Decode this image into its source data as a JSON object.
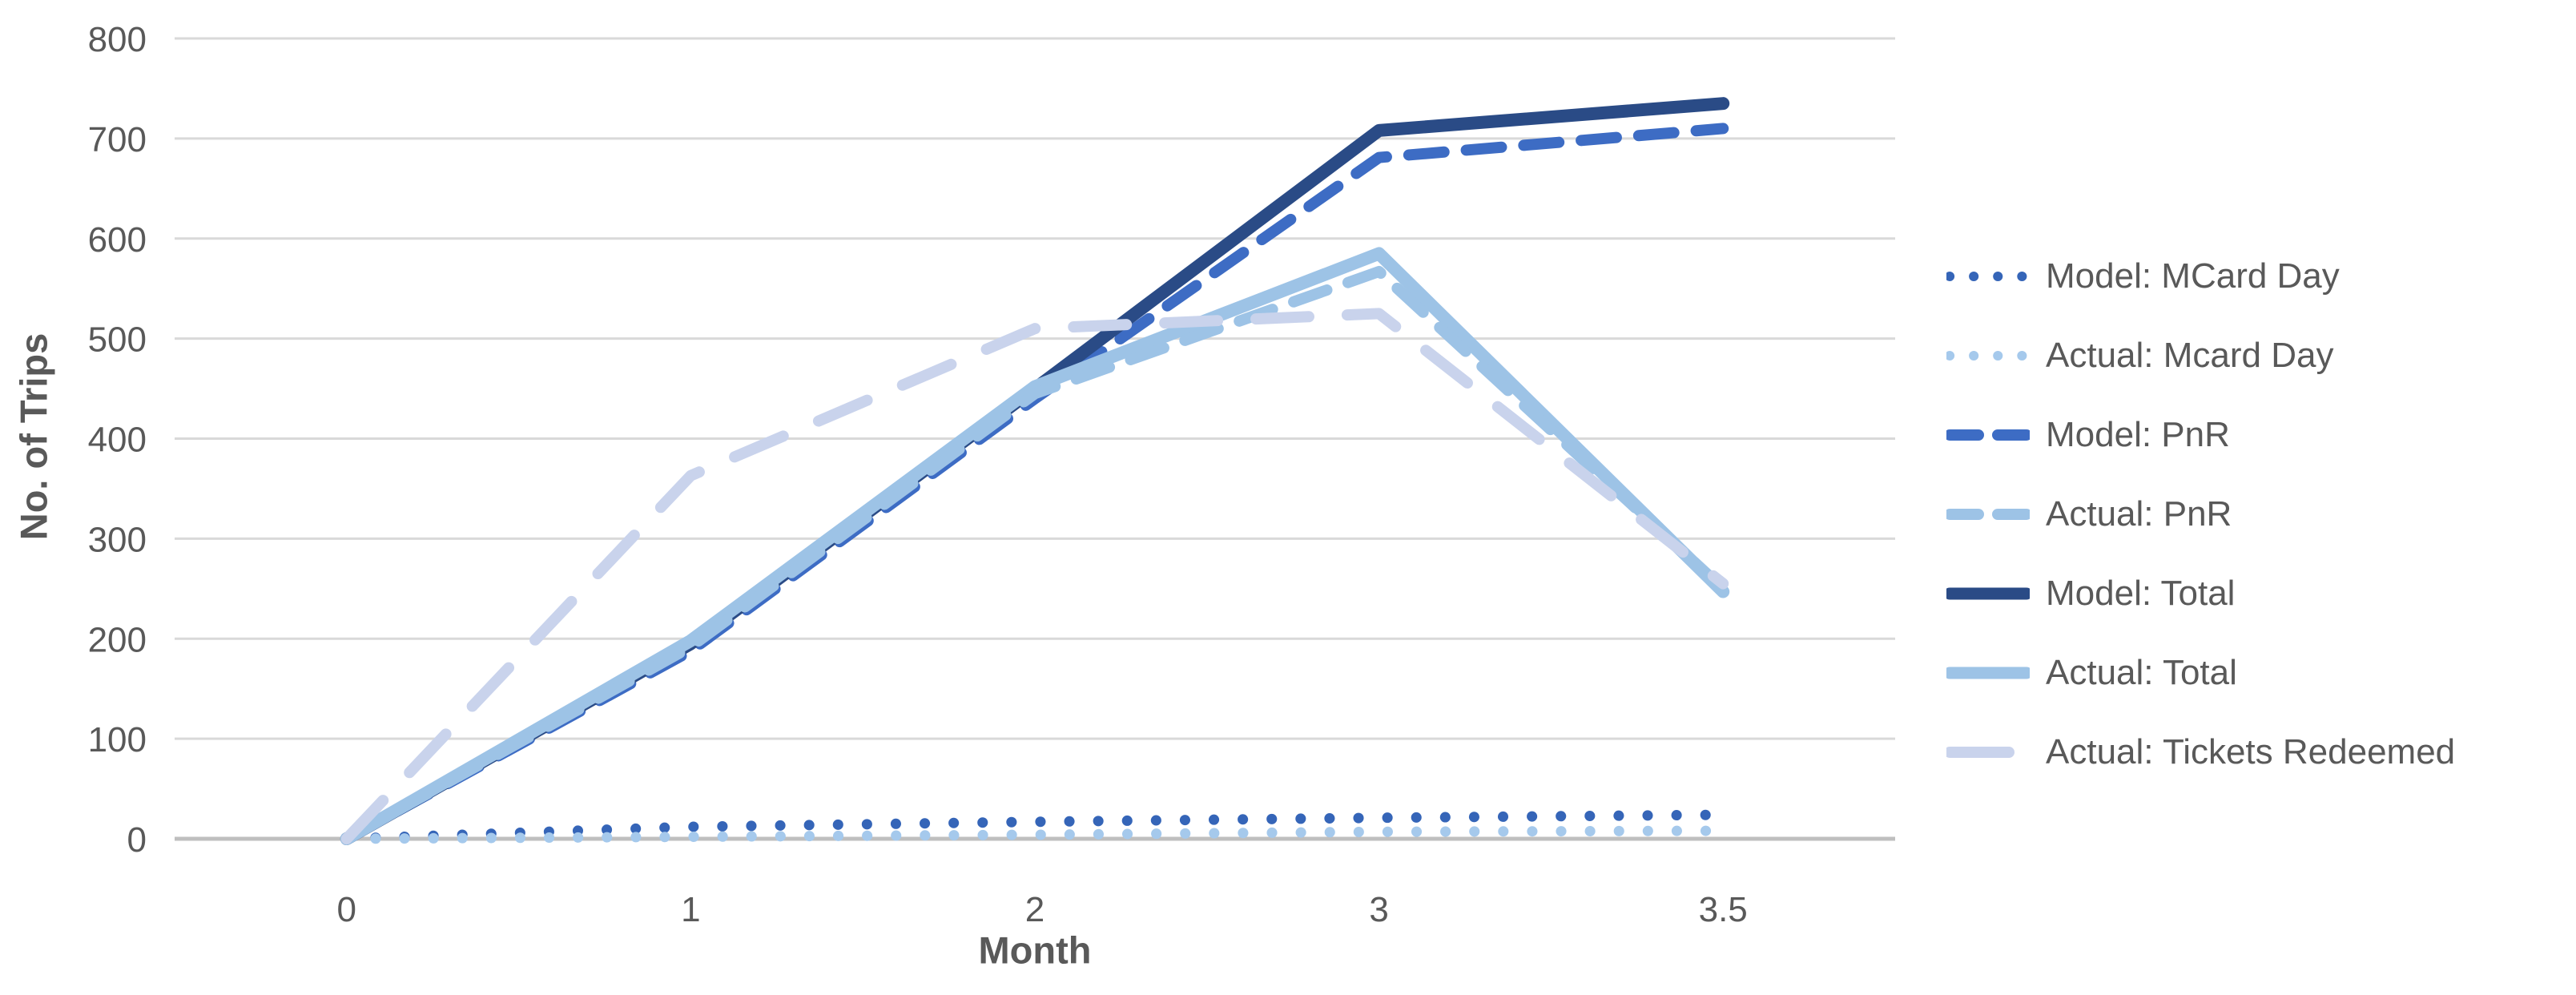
{
  "page": {
    "background": "#FFFFFF",
    "text_color": "#595959",
    "gridline_color": "#D9D9D9",
    "axis_line_color": "#BFBFBF"
  },
  "chart_data": {
    "type": "line",
    "title": "",
    "xlabel": "Month",
    "ylabel": "No. of Trips",
    "x_categories": [
      "0",
      "1",
      "2",
      "3",
      "3.5"
    ],
    "y_ticks": [
      0,
      100,
      200,
      300,
      400,
      500,
      600,
      700,
      800
    ],
    "ylim": [
      0,
      800
    ],
    "grid": "horizontal",
    "legend_position": "right",
    "series": [
      {
        "name": "Model: MCard Day",
        "style": "dotted",
        "color": "#3565B8",
        "values": [
          0,
          12,
          17,
          21,
          24
        ]
      },
      {
        "name": "Actual: Mcard Day",
        "style": "dotted",
        "color": "#A5C9EC",
        "values": [
          0,
          2,
          4,
          7,
          8
        ]
      },
      {
        "name": "Model: PnR",
        "style": "dashed",
        "color": "#3D6CC4",
        "values": [
          0,
          188,
          440,
          681,
          710
        ]
      },
      {
        "name": "Model: Total",
        "style": "solid",
        "color": "#2A4B86",
        "values": [
          0,
          195,
          450,
          708,
          735
        ]
      },
      {
        "name": "Actual: Total",
        "style": "solid",
        "color": "#9DC3E6",
        "values": [
          0,
          198,
          452,
          585,
          247
        ]
      },
      {
        "name": "Actual: PnR",
        "style": "dashed",
        "color": "#9DC3E6",
        "values": [
          0,
          192,
          445,
          567,
          250
        ]
      },
      {
        "name": "Actual: Tickets Redeemed",
        "style": "long-dash",
        "color": "#C9D3EC",
        "values": [
          0,
          363,
          510,
          525,
          255
        ]
      }
    ],
    "legend_order": [
      "Model: MCard Day",
      "Actual: Mcard Day",
      "Model: PnR",
      "Actual: PnR",
      "Model: Total",
      "Actual: Total",
      "Actual: Tickets Redeemed"
    ]
  }
}
